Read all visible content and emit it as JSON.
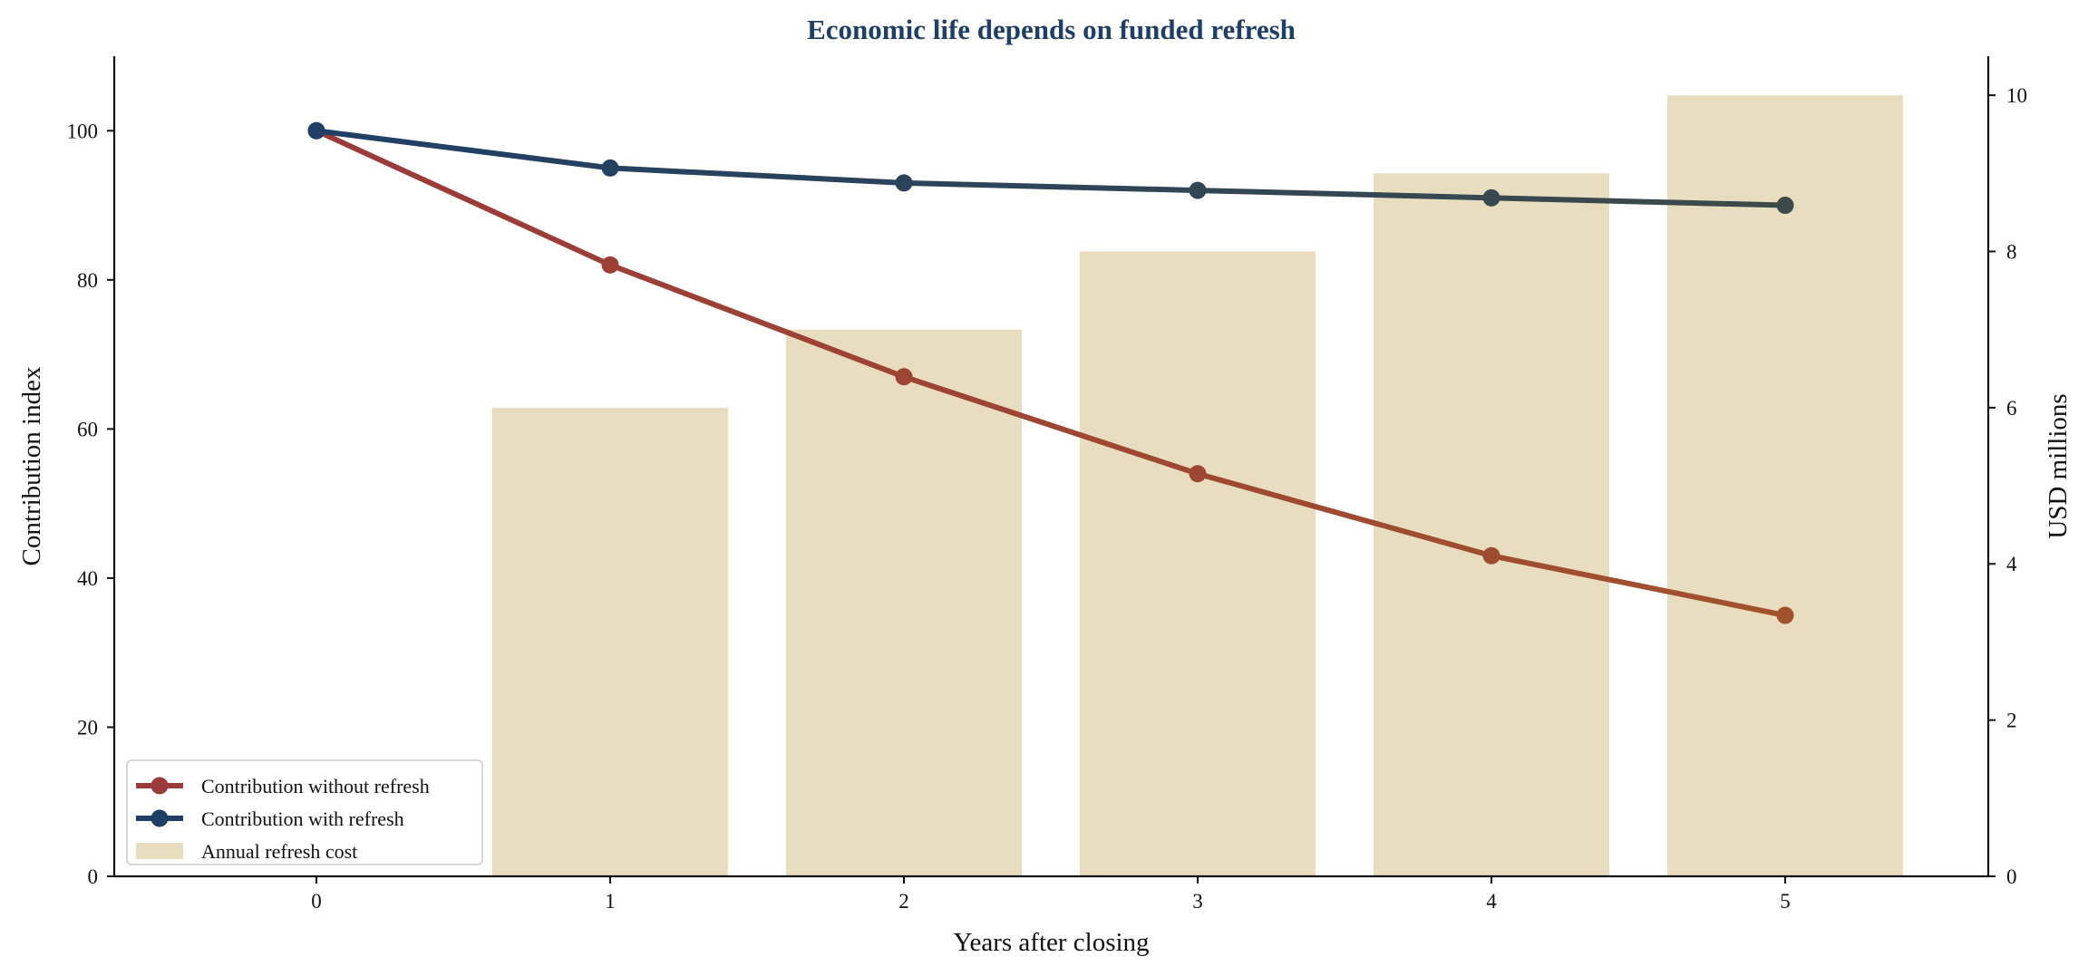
{
  "chart_data": {
    "type": "bar",
    "title": "Economic life depends on funded refresh",
    "xlabel": "Years after closing",
    "ylabel_left": "Contribution index",
    "ylabel_right": "USD millions",
    "x": [
      0,
      1,
      2,
      3,
      4,
      5
    ],
    "x_tick_labels": [
      "0",
      "1",
      "2",
      "3",
      "4",
      "5"
    ],
    "ylim_left": [
      0,
      110
    ],
    "ylim_right": [
      0,
      10.5
    ],
    "yticks_left": [
      "0",
      "20",
      "40",
      "60",
      "80",
      "100"
    ],
    "yticks_right": [
      "0",
      "2",
      "4",
      "6",
      "8",
      "10"
    ],
    "grid": false,
    "legend_position": "lower-left",
    "series": [
      {
        "name": "Contribution without refresh",
        "kind": "line",
        "axis": "left",
        "values": [
          100,
          82,
          67,
          54,
          43,
          35
        ],
        "color_start": "#9b3a3a",
        "color_end": "#a0522d"
      },
      {
        "name": "Contribution with refresh",
        "kind": "line",
        "axis": "left",
        "values": [
          100,
          95,
          93,
          92,
          91,
          90
        ],
        "color_start": "#1f3f66",
        "color_end": "#3d4a4a"
      },
      {
        "name": "Annual refresh cost",
        "kind": "bar",
        "axis": "right",
        "values": [
          0,
          6,
          7,
          8,
          9,
          10
        ],
        "color": "#e8ddbe"
      }
    ],
    "colors": {
      "title": "#1f3f66",
      "axis": "#111111"
    }
  }
}
